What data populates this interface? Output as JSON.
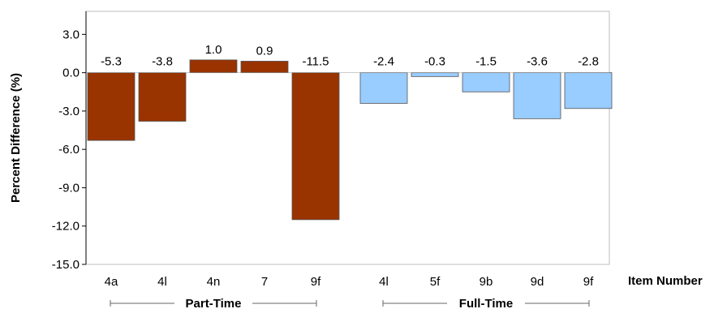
{
  "chart_data": {
    "type": "bar",
    "ylabel": "Percent Difference (%)",
    "xlabel": "Item Number",
    "ylim": [
      -15.0,
      4.8
    ],
    "yticks": [
      "3.0",
      "0.0",
      "-3.0",
      "-6.0",
      "-9.0",
      "-12.0",
      "-15.0"
    ],
    "ytick_values": [
      3,
      0,
      -3,
      -6,
      -9,
      -12,
      -15
    ],
    "grid": false,
    "groups": [
      {
        "name": "Part-Time",
        "color": "#993300",
        "categories": [
          "4a",
          "4l",
          "4n",
          "7",
          "9f"
        ],
        "values": [
          -5.3,
          -3.8,
          1.0,
          0.9,
          -11.5
        ],
        "labels": [
          "-5.3",
          "-3.8",
          "1.0",
          "0.9",
          "-11.5"
        ]
      },
      {
        "name": "Full-Time",
        "color": "#99ccff",
        "categories": [
          "4l",
          "5f",
          "9b",
          "9d",
          "9f"
        ],
        "values": [
          -2.4,
          -0.3,
          -1.5,
          -3.6,
          -2.8
        ],
        "labels": [
          "-2.4",
          "-0.3",
          "-1.5",
          "-3.6",
          "-2.8"
        ]
      }
    ]
  }
}
